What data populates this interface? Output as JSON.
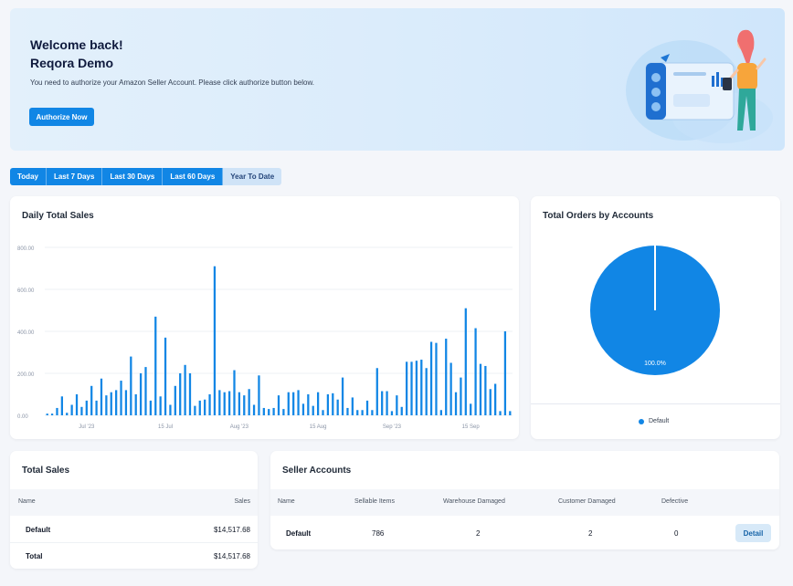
{
  "hero": {
    "greeting": "Welcome back!",
    "account_name": "Reqora Demo",
    "message": "You need to authorize your Amazon Seller Account. Please click authorize button below.",
    "authorize_label": "Authorize Now"
  },
  "date_ranges": [
    "Today",
    "Last 7 Days",
    "Last 30 Days",
    "Last 60 Days",
    "Year To Date"
  ],
  "active_range": "Year To Date",
  "colors": {
    "primary": "#1186e5",
    "hero_bg": "#dcecfb",
    "page_bg": "#f4f6fa"
  },
  "daily_sales": {
    "title": "Daily Total Sales",
    "chart_data": {
      "type": "bar",
      "title": "Daily Total Sales",
      "ylim": [
        0,
        800
      ],
      "y_ticks": [
        "800.00",
        "600.00",
        "400.00",
        "200.00",
        "0.00"
      ],
      "y_tick_values": [
        800,
        600,
        400,
        200,
        0
      ],
      "x_tick_labels": [
        "Jul '23",
        "15 Jul",
        "Aug '23",
        "15 Aug",
        "Sep '23",
        "15 Sep"
      ],
      "x_tick_days": [
        8,
        24,
        39,
        55,
        70,
        86
      ],
      "grid": true,
      "values": [
        8,
        8,
        35,
        90,
        12,
        50,
        100,
        40,
        70,
        140,
        70,
        175,
        95,
        110,
        120,
        165,
        120,
        280,
        100,
        200,
        230,
        70,
        470,
        90,
        370,
        50,
        140,
        200,
        240,
        200,
        45,
        70,
        75,
        100,
        710,
        120,
        110,
        115,
        215,
        110,
        95,
        125,
        50,
        190,
        35,
        30,
        35,
        95,
        30,
        110,
        110,
        120,
        55,
        100,
        45,
        110,
        25,
        100,
        105,
        75,
        180,
        35,
        85,
        25,
        25,
        70,
        25,
        225,
        115,
        115,
        20,
        95,
        40,
        255,
        255,
        260,
        265,
        225,
        350,
        345,
        25,
        365,
        250,
        110,
        180,
        510,
        55,
        415,
        245,
        235,
        125,
        150,
        20,
        400,
        20
      ]
    }
  },
  "orders": {
    "title": "Total Orders by Accounts",
    "chart_data": {
      "type": "pie",
      "title": "Total Orders by Accounts",
      "labels": [
        "Default"
      ],
      "values": [
        100.0
      ],
      "value_labels": [
        "100.0%"
      ],
      "legend_position": "bottom"
    },
    "legend_label": "Default"
  },
  "total_sales": {
    "title": "Total Sales",
    "columns": [
      "Name",
      "Sales"
    ],
    "rows": [
      {
        "name": "Default",
        "sales": "$14,517.68"
      },
      {
        "name": "Total",
        "sales": "$14,517.68"
      }
    ]
  },
  "seller_accounts": {
    "title": "Seller Accounts",
    "columns": [
      "Name",
      "Sellable Items",
      "Warehouse Damaged",
      "Customer Damaged",
      "Defective"
    ],
    "rows": [
      {
        "name": "Default",
        "sellable": "786",
        "warehouse_damaged": "2",
        "customer_damaged": "2",
        "defective": "0",
        "action": "Detail"
      }
    ]
  }
}
